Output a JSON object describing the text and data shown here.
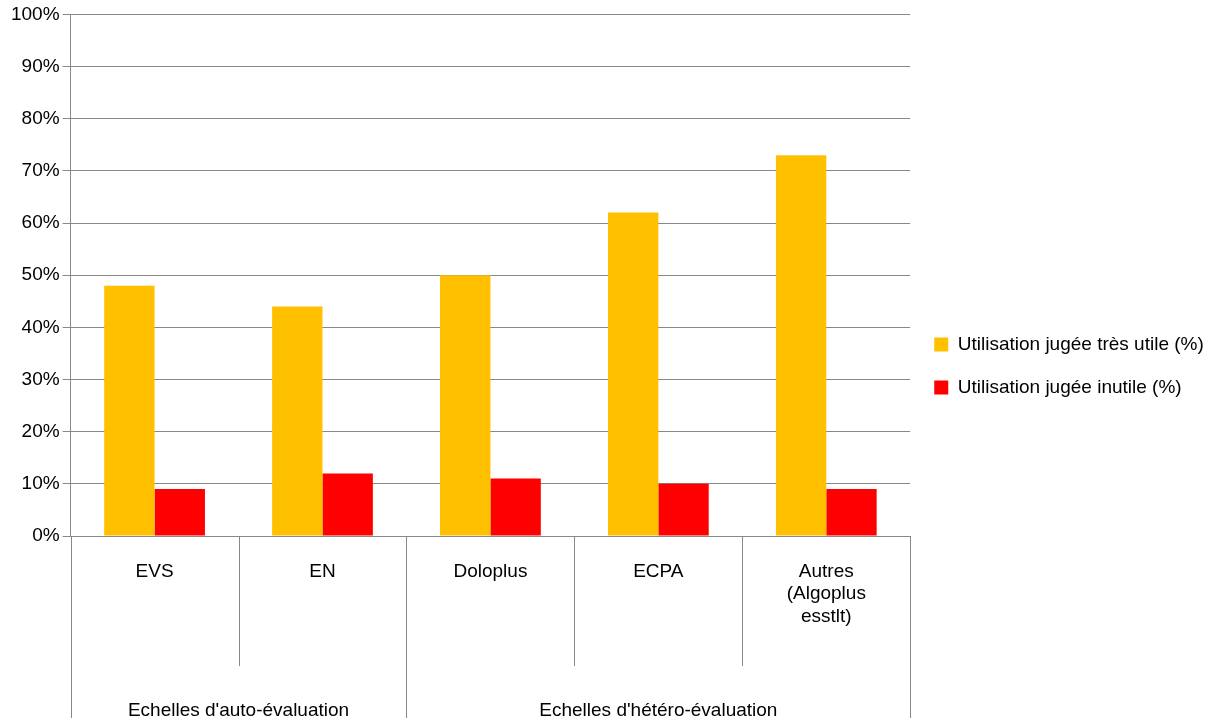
{
  "chart_data": {
    "type": "bar",
    "categories": [
      "EVS",
      "EN",
      "Doloplus",
      "ECPA",
      "Autres (Algoplus esstlt)"
    ],
    "series": [
      {
        "name": "Utilisation jugée très utile (%)",
        "color": "#ffc000",
        "values": [
          48,
          44,
          50,
          62,
          73
        ]
      },
      {
        "name": "Utilisation jugée inutile (%)",
        "color": "#ff0000",
        "values": [
          9,
          12,
          11,
          10,
          9
        ]
      }
    ],
    "ylim": [
      0,
      100
    ],
    "yticks": [
      {
        "value": 0,
        "label": "0%"
      },
      {
        "value": 10,
        "label": "10%"
      },
      {
        "value": 20,
        "label": "20%"
      },
      {
        "value": 30,
        "label": "30%"
      },
      {
        "value": 40,
        "label": "40%"
      },
      {
        "value": 50,
        "label": "50%"
      },
      {
        "value": 60,
        "label": "60%"
      },
      {
        "value": 70,
        "label": "70%"
      },
      {
        "value": 80,
        "label": "80%"
      },
      {
        "value": 90,
        "label": "90%"
      },
      {
        "value": 100,
        "label": "100%"
      }
    ],
    "grid": "y",
    "legend": "right",
    "annotations": [
      "Echelles d'auto-évaluation",
      "Echelles d'hétéro-évaluation"
    ]
  }
}
